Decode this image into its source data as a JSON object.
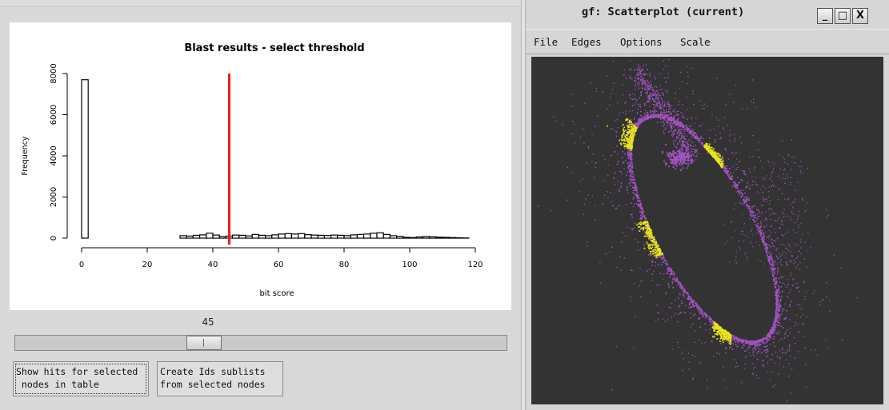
{
  "left_panel": {
    "chart_data": {
      "type": "bar",
      "title": "Blast results - select threshold",
      "xlabel": "bit score",
      "ylabel": "Frequency",
      "xlim": [
        0,
        120
      ],
      "ylim": [
        0,
        8000
      ],
      "xticks": [
        "0",
        "20",
        "40",
        "60",
        "80",
        "100",
        "120"
      ],
      "yticks": [
        "0",
        "2000",
        "4000",
        "6000",
        "8000"
      ],
      "bins_start": 0,
      "bin_width": 2,
      "values": [
        7700,
        0,
        0,
        0,
        0,
        0,
        0,
        0,
        0,
        0,
        0,
        0,
        0,
        0,
        0,
        120,
        100,
        140,
        160,
        240,
        150,
        80,
        100,
        150,
        140,
        110,
        180,
        140,
        120,
        160,
        200,
        220,
        200,
        220,
        170,
        150,
        140,
        130,
        150,
        140,
        120,
        160,
        180,
        200,
        240,
        260,
        180,
        120,
        90,
        40,
        30,
        60,
        80,
        70,
        50,
        40,
        30,
        20,
        10
      ],
      "threshold": 45,
      "threshold_color": "#ee1c1c",
      "grid": false
    },
    "slider": {
      "value": "45",
      "min": 0,
      "max": 120,
      "current": 45
    },
    "buttons": {
      "show_hits": "Show hits for selected\n nodes in table",
      "create_ids": "Create Ids sublists\nfrom selected nodes"
    }
  },
  "right_panel": {
    "window_title": "gf: Scatterplot (current)",
    "window_buttons": {
      "minimize": "_",
      "maximize": "□",
      "close": "X"
    },
    "menu": [
      "File",
      "Edges",
      "Options",
      "Scale"
    ],
    "scatter": {
      "background": "#333333",
      "colors": {
        "primary": "#a352c4",
        "highlight": "#e8e816"
      }
    }
  }
}
